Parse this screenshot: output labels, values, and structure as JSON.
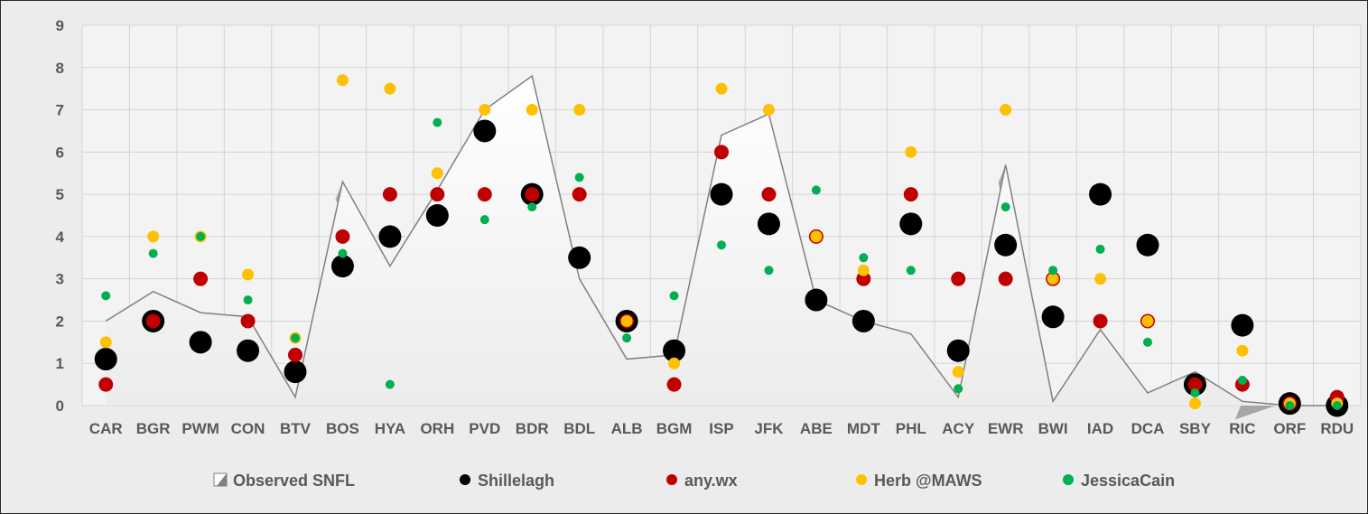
{
  "chart_data": {
    "type": "scatter",
    "title": "",
    "xlabel": "",
    "ylabel": "",
    "ylim": [
      0,
      9
    ],
    "y_ticks": [
      "0",
      "1",
      "2",
      "3",
      "4",
      "5",
      "6",
      "7",
      "8",
      "9"
    ],
    "grid": true,
    "legend_position": "bottom",
    "categories": [
      "CAR",
      "BGR",
      "PWM",
      "CON",
      "BTV",
      "BOS",
      "HYA",
      "ORH",
      "PVD",
      "BDR",
      "BDL",
      "ALB",
      "BGM",
      "ISP",
      "JFK",
      "ABE",
      "MDT",
      "PHL",
      "ACY",
      "EWR",
      "BWI",
      "IAD",
      "DCA",
      "SBY",
      "RIC",
      "ORF",
      "RDU"
    ],
    "series": [
      {
        "name": "Observed SNFL",
        "kind": "area",
        "color": "#f7f7f7",
        "edge": "#808080",
        "values": [
          2.0,
          2.7,
          2.2,
          2.1,
          0.2,
          5.3,
          3.3,
          5.1,
          7.0,
          7.8,
          3.0,
          1.1,
          1.2,
          6.4,
          6.9,
          2.5,
          2.0,
          1.7,
          0.2,
          5.7,
          0.1,
          1.8,
          0.3,
          0.8,
          0.1,
          0.0,
          0.0
        ]
      },
      {
        "name": "Shillelagh",
        "kind": "dot",
        "color": "#000000",
        "values": [
          1.1,
          2.0,
          1.5,
          1.3,
          0.8,
          3.3,
          4.0,
          4.5,
          6.5,
          5.0,
          3.5,
          2.0,
          1.3,
          5.0,
          4.3,
          2.5,
          2.0,
          4.3,
          1.3,
          3.8,
          2.1,
          5.0,
          3.8,
          0.5,
          1.9,
          0.05,
          0.0
        ]
      },
      {
        "name": "any.wx",
        "kind": "dot",
        "color": "#c00000",
        "values": [
          0.5,
          2.0,
          3.0,
          2.0,
          1.2,
          4.0,
          5.0,
          5.0,
          5.0,
          5.0,
          5.0,
          2.0,
          0.5,
          6.0,
          5.0,
          4.0,
          3.0,
          5.0,
          3.0,
          3.0,
          3.0,
          2.0,
          2.0,
          0.5,
          0.5,
          0.05,
          0.2
        ]
      },
      {
        "name": "Herb @MAWS",
        "kind": "dot",
        "color": "#ffc000",
        "values": [
          1.5,
          4.0,
          4.0,
          3.1,
          1.6,
          7.7,
          7.5,
          5.5,
          7.0,
          7.0,
          7.0,
          2.0,
          1.0,
          7.5,
          7.0,
          4.0,
          3.2,
          6.0,
          0.8,
          7.0,
          3.0,
          3.0,
          2.0,
          0.05,
          1.3,
          0.05,
          0.05
        ]
      },
      {
        "name": "JessicaCain",
        "kind": "dot",
        "color": "#00b050",
        "values": [
          2.6,
          3.6,
          4.0,
          2.5,
          1.6,
          3.6,
          0.5,
          6.7,
          4.4,
          4.7,
          5.4,
          1.6,
          2.6,
          3.8,
          3.2,
          5.1,
          3.5,
          3.2,
          0.4,
          4.7,
          3.2,
          3.7,
          1.5,
          0.3,
          0.6,
          0.0,
          0.0
        ]
      }
    ]
  }
}
